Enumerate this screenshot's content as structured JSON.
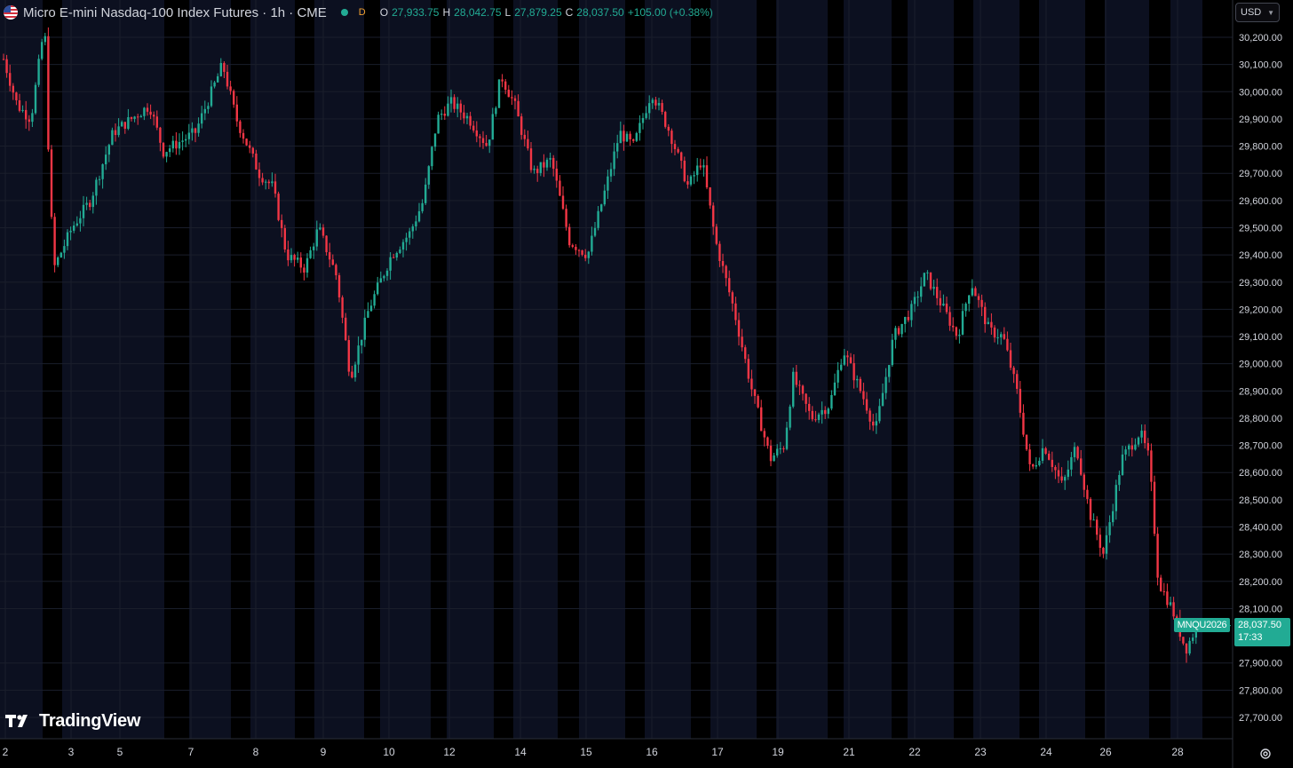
{
  "header": {
    "title": "Micro E-mini Nasdaq-100 Index Futures · 1h · CME",
    "badge": "D",
    "ohlc": [
      {
        "key": "O",
        "value": "27,933.75"
      },
      {
        "key": "H",
        "value": "28,042.75"
      },
      {
        "key": "L",
        "value": "27,879.25"
      },
      {
        "key": "C",
        "value": "28,037.50"
      }
    ],
    "change": "+105.00 (+0.38%)"
  },
  "currency": "USD",
  "price_tag": {
    "symbol": "MNQU2026",
    "price": "28,037.50",
    "countdown": "17:33"
  },
  "logo_text": "TradingView",
  "colors": {
    "up": "#22ab94",
    "down": "#f23645",
    "background": "#000000",
    "session_band": "#0c1020",
    "grid": "#1a1e2b"
  },
  "icons": {
    "flag": "us-flag-icon",
    "settings": "settings-gear-icon",
    "logo": "tradingview-logo-icon"
  },
  "chart_data": {
    "type": "candlestick",
    "y_ticks": [
      "30,200.00",
      "30,100.00",
      "30,000.00",
      "29,900.00",
      "29,800.00",
      "29,700.00",
      "29,600.00",
      "29,500.00",
      "29,400.00",
      "29,300.00",
      "29,200.00",
      "29,100.00",
      "29,000.00",
      "28,900.00",
      "28,800.00",
      "28,700.00",
      "28,600.00",
      "28,500.00",
      "28,400.00",
      "28,300.00",
      "28,200.00",
      "28,100.00",
      "27,900.00",
      "27,800.00",
      "27,700.00"
    ],
    "ylim": [
      27650,
      30250
    ],
    "x_ticks": [
      "2",
      "3",
      "5",
      "7",
      "8",
      "9",
      "10",
      "12",
      "14",
      "15",
      "16",
      "17",
      "19",
      "21",
      "22",
      "23",
      "24",
      "26",
      "28"
    ],
    "close_path": [
      [
        0,
        30120
      ],
      [
        0.3,
        29950
      ],
      [
        0.6,
        29900
      ],
      [
        0.9,
        30250
      ],
      [
        1.0,
        29700
      ],
      [
        1.1,
        29350
      ],
      [
        1.5,
        29500
      ],
      [
        1.9,
        29600
      ],
      [
        2.4,
        29850
      ],
      [
        3.2,
        29950
      ],
      [
        3.5,
        29780
      ],
      [
        4.2,
        29850
      ],
      [
        4.8,
        30100
      ],
      [
        5.1,
        29900
      ],
      [
        5.6,
        29700
      ],
      [
        5.9,
        29650
      ],
      [
        6.2,
        29400
      ],
      [
        6.6,
        29350
      ],
      [
        6.9,
        29500
      ],
      [
        7.3,
        29320
      ],
      [
        7.6,
        28950
      ],
      [
        8.0,
        29200
      ],
      [
        8.5,
        29400
      ],
      [
        8.9,
        29480
      ],
      [
        9.2,
        29600
      ],
      [
        9.5,
        29900
      ],
      [
        9.8,
        29960
      ],
      [
        10.2,
        29900
      ],
      [
        10.6,
        29800
      ],
      [
        10.9,
        30060
      ],
      [
        11.2,
        29950
      ],
      [
        11.6,
        29700
      ],
      [
        12.0,
        29750
      ],
      [
        12.4,
        29450
      ],
      [
        12.8,
        29400
      ],
      [
        13.2,
        29650
      ],
      [
        13.5,
        29850
      ],
      [
        13.8,
        29800
      ],
      [
        14.2,
        30000
      ],
      [
        14.6,
        29850
      ],
      [
        15.0,
        29650
      ],
      [
        15.3,
        29750
      ],
      [
        15.6,
        29450
      ],
      [
        16.0,
        29200
      ],
      [
        16.4,
        28900
      ],
      [
        16.8,
        28650
      ],
      [
        17.1,
        28700
      ],
      [
        17.3,
        28950
      ],
      [
        17.7,
        28800
      ],
      [
        18.1,
        28850
      ],
      [
        18.4,
        29050
      ],
      [
        18.9,
        28850
      ],
      [
        19.1,
        28750
      ],
      [
        19.5,
        29100
      ],
      [
        19.9,
        29200
      ],
      [
        20.2,
        29330
      ],
      [
        20.6,
        29200
      ],
      [
        20.9,
        29100
      ],
      [
        21.2,
        29300
      ],
      [
        21.6,
        29120
      ],
      [
        21.9,
        29100
      ],
      [
        22.2,
        28900
      ],
      [
        22.5,
        28600
      ],
      [
        22.8,
        28700
      ],
      [
        23.2,
        28550
      ],
      [
        23.5,
        28700
      ],
      [
        23.8,
        28450
      ],
      [
        24.1,
        28300
      ],
      [
        24.5,
        28650
      ],
      [
        24.9,
        28750
      ],
      [
        25.1,
        28650
      ],
      [
        25.3,
        28200
      ],
      [
        25.6,
        28100
      ],
      [
        25.9,
        27950
      ],
      [
        26.15,
        28037.5
      ]
    ]
  }
}
